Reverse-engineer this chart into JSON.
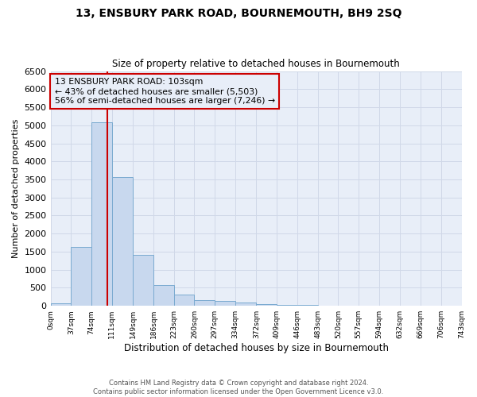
{
  "title": "13, ENSBURY PARK ROAD, BOURNEMOUTH, BH9 2SQ",
  "subtitle": "Size of property relative to detached houses in Bournemouth",
  "xlabel": "Distribution of detached houses by size in Bournemouth",
  "ylabel": "Number of detached properties",
  "footer_line1": "Contains HM Land Registry data © Crown copyright and database right 2024.",
  "footer_line2": "Contains public sector information licensed under the Open Government Licence v3.0.",
  "bar_color": "#c8d8ee",
  "bar_edge_color": "#7aaad0",
  "grid_color": "#d0d8e8",
  "vline_color": "#cc0000",
  "annotation_box_color": "#cc0000",
  "annotation_text": "13 ENSBURY PARK ROAD: 103sqm\n← 43% of detached houses are smaller (5,503)\n56% of semi-detached houses are larger (7,246) →",
  "property_size": 103,
  "bin_edges": [
    0,
    37,
    74,
    111,
    149,
    186,
    223,
    260,
    297,
    334,
    372,
    409,
    446,
    483,
    520,
    557,
    594,
    632,
    669,
    706,
    743
  ],
  "bin_labels": [
    "0sqm",
    "37sqm",
    "74sqm",
    "111sqm",
    "149sqm",
    "186sqm",
    "223sqm",
    "260sqm",
    "297sqm",
    "334sqm",
    "372sqm",
    "409sqm",
    "446sqm",
    "483sqm",
    "520sqm",
    "557sqm",
    "594sqm",
    "632sqm",
    "669sqm",
    "706sqm",
    "743sqm"
  ],
  "bar_heights": [
    75,
    1625,
    5080,
    3570,
    1410,
    575,
    305,
    160,
    140,
    95,
    55,
    30,
    20,
    10,
    5,
    5,
    3,
    2,
    2,
    1
  ],
  "ylim": [
    0,
    6500
  ],
  "yticks": [
    0,
    500,
    1000,
    1500,
    2000,
    2500,
    3000,
    3500,
    4000,
    4500,
    5000,
    5500,
    6000,
    6500
  ],
  "fig_bg": "#ffffff",
  "ax_bg": "#e8eef8"
}
